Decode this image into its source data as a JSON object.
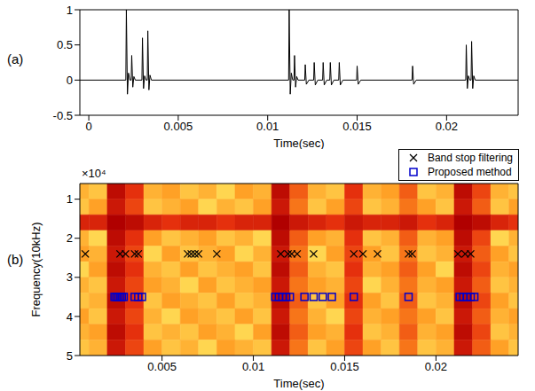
{
  "chart_data": [
    {
      "type": "line",
      "label": "(a)",
      "xlabel": "Time(sec)",
      "xlim": [
        -0.0005,
        0.024
      ],
      "xticks": [
        0,
        0.005,
        0.01,
        0.015,
        0.02
      ],
      "ylim": [
        -0.5,
        1
      ],
      "yticks": [
        -0.5,
        0,
        0.5,
        1
      ],
      "color": "#000000",
      "x": [
        -0.0005,
        0.00207,
        0.0021,
        0.00216,
        0.00222,
        0.0023,
        0.00237,
        0.0024,
        0.00246,
        0.00252,
        0.0026,
        0.00297,
        0.003,
        0.00306,
        0.00312,
        0.0032,
        0.00327,
        0.0033,
        0.00336,
        0.00342,
        0.0035,
        0.01117,
        0.0112,
        0.01126,
        0.01132,
        0.0114,
        0.01147,
        0.0115,
        0.01156,
        0.01162,
        0.0117,
        0.01207,
        0.0121,
        0.01216,
        0.0123,
        0.01257,
        0.0126,
        0.01266,
        0.0128,
        0.01307,
        0.0131,
        0.01316,
        0.0133,
        0.01347,
        0.0135,
        0.01356,
        0.0137,
        0.01397,
        0.014,
        0.01406,
        0.0142,
        0.01497,
        0.015,
        0.01506,
        0.0152,
        0.01807,
        0.0181,
        0.01816,
        0.0183,
        0.02107,
        0.0211,
        0.02116,
        0.02122,
        0.0213,
        0.02137,
        0.0214,
        0.02146,
        0.02152,
        0.0216,
        0.024
      ],
      "values": [
        0,
        0,
        1,
        -0.2,
        0.1,
        0,
        0,
        0.35,
        -0.1,
        0.05,
        0,
        0,
        0.6,
        -0.12,
        0.06,
        0,
        0,
        0.7,
        -0.14,
        0.07,
        0,
        0,
        1,
        -0.2,
        0.1,
        0,
        0,
        0.35,
        -0.1,
        0.05,
        0,
        0,
        0.22,
        -0.06,
        0,
        0,
        0.25,
        -0.07,
        0,
        0,
        0.25,
        -0.07,
        0,
        0,
        0.25,
        -0.07,
        0,
        0,
        0.25,
        -0.07,
        0,
        0,
        0.2,
        -0.06,
        0,
        0,
        0.2,
        -0.06,
        0,
        0,
        0.5,
        -0.12,
        0.06,
        0,
        0,
        0.55,
        -0.12,
        0.06,
        0,
        0
      ]
    },
    {
      "type": "heatmap",
      "label": "(b)",
      "xlabel": "Time(sec)",
      "ylabel": "Frequency(10kHz)",
      "y_multiplier": "×10⁴",
      "xlim": [
        0.0005,
        0.0245
      ],
      "xticks": [
        0.005,
        0.01,
        0.015,
        0.02
      ],
      "ylim": [
        0.6,
        5
      ],
      "yticks": [
        1,
        2,
        3,
        4,
        5
      ],
      "legend": "top-right",
      "heatmap": {
        "x_edges": [
          0,
          0.001,
          0.002,
          0.003,
          0.004,
          0.005,
          0.006,
          0.007,
          0.008,
          0.009,
          0.01,
          0.011,
          0.012,
          0.013,
          0.014,
          0.015,
          0.016,
          0.017,
          0.018,
          0.019,
          0.02,
          0.021,
          0.022,
          0.023,
          0.024,
          0.025
        ],
        "y_edges": [
          0.6,
          1,
          1.4,
          1.8,
          2.2,
          2.6,
          3,
          3.4,
          3.8,
          4.2,
          4.6,
          5
        ],
        "cells": [
          [
            0.5,
            0.45,
            0.95,
            0.8,
            0.5,
            0.55,
            0.45,
            0.5,
            0.4,
            0.55,
            0.5,
            0.95,
            0.7,
            0.5,
            0.45,
            0.8,
            0.5,
            0.55,
            0.7,
            0.45,
            0.5,
            0.95,
            0.75,
            0.5,
            0.45
          ],
          [
            0.45,
            0.55,
            0.9,
            0.75,
            0.45,
            0.5,
            0.55,
            0.4,
            0.5,
            0.45,
            0.55,
            0.9,
            0.65,
            0.45,
            0.55,
            0.75,
            0.45,
            0.5,
            0.65,
            0.55,
            0.45,
            0.9,
            0.7,
            0.45,
            0.55
          ],
          [
            0.85,
            0.85,
            1,
            0.95,
            0.85,
            0.8,
            0.85,
            0.85,
            0.8,
            0.85,
            0.85,
            1,
            0.9,
            0.85,
            0.8,
            0.9,
            0.85,
            0.85,
            0.9,
            0.8,
            0.85,
            1,
            0.95,
            0.85,
            0.8
          ],
          [
            0.5,
            0.4,
            0.95,
            0.8,
            0.55,
            0.45,
            0.5,
            0.55,
            0.45,
            0.5,
            0.4,
            0.95,
            0.7,
            0.55,
            0.5,
            0.8,
            0.45,
            0.5,
            0.7,
            0.5,
            0.55,
            0.95,
            0.75,
            0.4,
            0.5
          ],
          [
            0.55,
            0.5,
            0.9,
            0.75,
            0.4,
            0.55,
            0.45,
            0.5,
            0.55,
            0.4,
            0.5,
            0.9,
            0.65,
            0.4,
            0.55,
            0.75,
            0.55,
            0.45,
            0.65,
            0.45,
            0.5,
            0.9,
            0.7,
            0.55,
            0.45
          ],
          [
            0.4,
            0.55,
            0.95,
            0.8,
            0.5,
            0.45,
            0.55,
            0.45,
            0.5,
            0.55,
            0.45,
            0.95,
            0.7,
            0.5,
            0.45,
            0.8,
            0.5,
            0.55,
            0.7,
            0.55,
            0.4,
            0.95,
            0.75,
            0.5,
            0.55
          ],
          [
            0.5,
            0.45,
            0.9,
            0.75,
            0.55,
            0.5,
            0.4,
            0.55,
            0.45,
            0.5,
            0.55,
            0.9,
            0.65,
            0.55,
            0.5,
            0.75,
            0.4,
            0.5,
            0.65,
            0.5,
            0.55,
            0.9,
            0.7,
            0.45,
            0.5
          ],
          [
            0.45,
            0.5,
            0.95,
            0.8,
            0.45,
            0.55,
            0.5,
            0.45,
            0.55,
            0.45,
            0.5,
            0.95,
            0.7,
            0.45,
            0.55,
            0.8,
            0.55,
            0.45,
            0.7,
            0.45,
            0.5,
            0.95,
            0.75,
            0.55,
            0.45
          ],
          [
            0.55,
            0.45,
            0.9,
            0.75,
            0.5,
            0.4,
            0.55,
            0.5,
            0.45,
            0.55,
            0.45,
            0.9,
            0.65,
            0.5,
            0.4,
            0.75,
            0.5,
            0.55,
            0.65,
            0.55,
            0.45,
            0.9,
            0.7,
            0.5,
            0.55
          ],
          [
            0.5,
            0.55,
            0.95,
            0.8,
            0.45,
            0.5,
            0.45,
            0.55,
            0.5,
            0.4,
            0.55,
            0.95,
            0.7,
            0.55,
            0.5,
            0.8,
            0.45,
            0.5,
            0.7,
            0.5,
            0.55,
            0.95,
            0.75,
            0.45,
            0.5
          ],
          [
            0.45,
            0.5,
            0.9,
            0.75,
            0.55,
            0.45,
            0.5,
            0.4,
            0.55,
            0.5,
            0.45,
            0.9,
            0.65,
            0.45,
            0.55,
            0.75,
            0.55,
            0.45,
            0.65,
            0.45,
            0.5,
            0.9,
            0.7,
            0.55,
            0.45
          ]
        ]
      },
      "series": [
        {
          "name": "Band stop filtering",
          "type": "scatter",
          "marker": "x",
          "color": "#000000",
          "x": [
            0.0008,
            0.0027,
            0.003,
            0.0035,
            0.0037,
            0.0064,
            0.0066,
            0.0068,
            0.007,
            0.008,
            0.0115,
            0.0119,
            0.0121,
            0.0124,
            0.0133,
            0.0155,
            0.016,
            0.0168,
            0.0185,
            0.0187,
            0.0212,
            0.0216,
            0.0219
          ],
          "values": [
            2.4,
            2.4,
            2.4,
            2.4,
            2.4,
            2.4,
            2.4,
            2.4,
            2.4,
            2.4,
            2.4,
            2.4,
            2.4,
            2.4,
            2.4,
            2.4,
            2.4,
            2.4,
            2.4,
            2.4,
            2.4,
            2.4,
            2.4
          ]
        },
        {
          "name": "Proposed method",
          "type": "scatter",
          "marker": "square",
          "color": "#0000cc",
          "x": [
            0.0024,
            0.0025,
            0.0026,
            0.0027,
            0.0028,
            0.0029,
            0.0035,
            0.0037,
            0.0039,
            0.0112,
            0.0114,
            0.0116,
            0.0118,
            0.012,
            0.0128,
            0.0133,
            0.0138,
            0.0143,
            0.0155,
            0.0185,
            0.0213,
            0.0215,
            0.0217,
            0.0219,
            0.0221
          ],
          "values": [
            3.5,
            3.5,
            3.5,
            3.5,
            3.5,
            3.5,
            3.5,
            3.5,
            3.5,
            3.5,
            3.5,
            3.5,
            3.5,
            3.5,
            3.5,
            3.5,
            3.5,
            3.5,
            3.5,
            3.5,
            3.5,
            3.5,
            3.5,
            3.5,
            3.5
          ]
        }
      ]
    }
  ]
}
